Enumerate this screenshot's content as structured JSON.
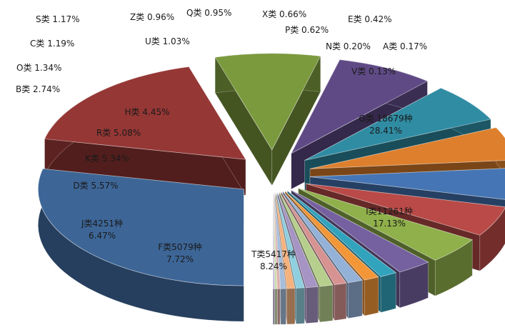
{
  "chart_data": {
    "type": "pie",
    "style": "3d-exploded",
    "legend": "none",
    "slices": [
      {
        "label": "G类 18679种",
        "name": "G类",
        "count": 18679,
        "value": 28.41,
        "pct_text": "28.41%",
        "color": "#3d6697"
      },
      {
        "label": "I类11261种",
        "name": "I类",
        "count": 11261,
        "value": 17.13,
        "pct_text": "17.13%",
        "color": "#953735"
      },
      {
        "label": "T类5417种",
        "name": "T类",
        "count": 5417,
        "value": 8.24,
        "pct_text": "8.24%",
        "color": "#7b9a3e"
      },
      {
        "label": "F类5079种",
        "name": "F类",
        "count": 5079,
        "value": 7.72,
        "pct_text": "7.72%",
        "color": "#5f4a86"
      },
      {
        "label": "J类4251种",
        "name": "J类",
        "count": 4251,
        "value": 6.47,
        "pct_text": "6.47%",
        "color": "#2f8ca3"
      },
      {
        "label": "D类 5.57%",
        "name": "D类",
        "value": 5.57,
        "color": "#dd7f2c"
      },
      {
        "label": "K类 5.34%",
        "name": "K类",
        "value": 5.34,
        "color": "#4575b4"
      },
      {
        "label": "R类 5.08%",
        "name": "R类",
        "value": 5.08,
        "color": "#b94a47"
      },
      {
        "label": "H类 4.45%",
        "name": "H类",
        "value": 4.45,
        "color": "#8fb04a"
      },
      {
        "label": "B类 2.74%",
        "name": "B类",
        "value": 2.74,
        "color": "#7560a0"
      },
      {
        "label": "O类 1.34%",
        "name": "O类",
        "value": 1.34,
        "color": "#32a3bd"
      },
      {
        "label": "C类 1.19%",
        "name": "C类",
        "value": 1.19,
        "color": "#f29638"
      },
      {
        "label": "S类 1.17%",
        "name": "S类",
        "value": 1.17,
        "color": "#94b1d8"
      },
      {
        "label": "Z类 0.96%",
        "name": "Z类",
        "value": 0.96,
        "color": "#d79391"
      },
      {
        "label": "U类 1.03%",
        "name": "U类",
        "value": 1.03,
        "color": "#b6cf8c"
      },
      {
        "label": "Q类 0.95%",
        "name": "Q类",
        "value": 0.95,
        "color": "#a694c4"
      },
      {
        "label": "X类 0.66%",
        "name": "X类",
        "value": 0.66,
        "color": "#8fcfdf"
      },
      {
        "label": "P类 0.62%",
        "name": "P类",
        "value": 0.62,
        "color": "#f4b27f"
      },
      {
        "label": "E类 0.42%",
        "name": "E类",
        "value": 0.42,
        "color": "#a6bddc"
      },
      {
        "label": "N类 0.20%",
        "name": "N类",
        "value": 0.2,
        "color": "#e0aaa8"
      },
      {
        "label": "A类 0.17%",
        "name": "A类",
        "value": 0.17,
        "color": "#c8dca6"
      },
      {
        "label": "V类 0.13%",
        "name": "V类",
        "value": 0.13,
        "color": "#bcaed4"
      }
    ]
  }
}
